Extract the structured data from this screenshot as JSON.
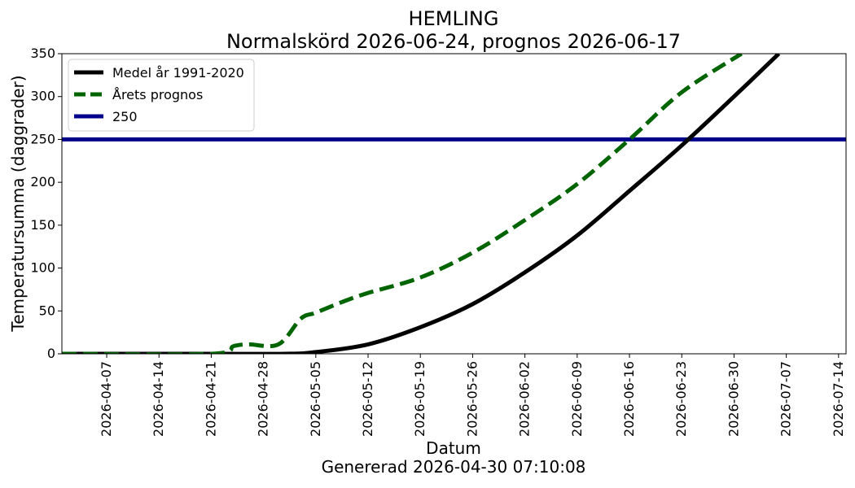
{
  "chart_data": {
    "type": "line",
    "title": "HEMLING",
    "subtitle": "Normalskörd 2026-06-24, prognos 2026-06-17",
    "xlabel": "Datum",
    "footer": "Genererad 2026-04-30 07:10:08",
    "ylabel": "Temperatursumma (daggrader)",
    "xlim": [
      "2026-04-01",
      "2026-07-15"
    ],
    "ylim": [
      0,
      350
    ],
    "x_ticks": [
      "2026-04-07",
      "2026-04-14",
      "2026-04-21",
      "2026-04-28",
      "2026-05-05",
      "2026-05-12",
      "2026-05-19",
      "2026-05-26",
      "2026-06-02",
      "2026-06-09",
      "2026-06-16",
      "2026-06-23",
      "2026-06-30",
      "2026-07-07",
      "2026-07-14"
    ],
    "y_ticks": [
      0,
      50,
      100,
      150,
      200,
      250,
      300,
      350
    ],
    "legend_position": "top-left",
    "grid": false,
    "series": [
      {
        "name": "Medel år 1991-2020",
        "color": "#000000",
        "style": "solid",
        "x": [
          "2026-04-01",
          "2026-04-21",
          "2026-05-01",
          "2026-05-05",
          "2026-05-12",
          "2026-05-19",
          "2026-05-26",
          "2026-06-02",
          "2026-06-09",
          "2026-06-16",
          "2026-06-23",
          "2026-06-30",
          "2026-07-06"
        ],
        "y": [
          0,
          0,
          0,
          2,
          11,
          31,
          58,
          95,
          138,
          190,
          243,
          300,
          350
        ]
      },
      {
        "name": "Årets prognos",
        "color": "#006400",
        "style": "dashed",
        "x": [
          "2026-04-01",
          "2026-04-21",
          "2026-04-24",
          "2026-04-26",
          "2026-04-30",
          "2026-05-03",
          "2026-05-05",
          "2026-05-09",
          "2026-05-12",
          "2026-05-19",
          "2026-05-26",
          "2026-06-02",
          "2026-06-09",
          "2026-06-16",
          "2026-06-23",
          "2026-07-01"
        ],
        "y": [
          0,
          0,
          9,
          11,
          11,
          41,
          48,
          62,
          71,
          89,
          118,
          156,
          198,
          250,
          305,
          350
        ]
      },
      {
        "name": "250",
        "color": "#00008b",
        "style": "solid",
        "x": [
          "2026-04-01",
          "2026-07-15"
        ],
        "y": [
          250,
          250
        ]
      }
    ]
  }
}
